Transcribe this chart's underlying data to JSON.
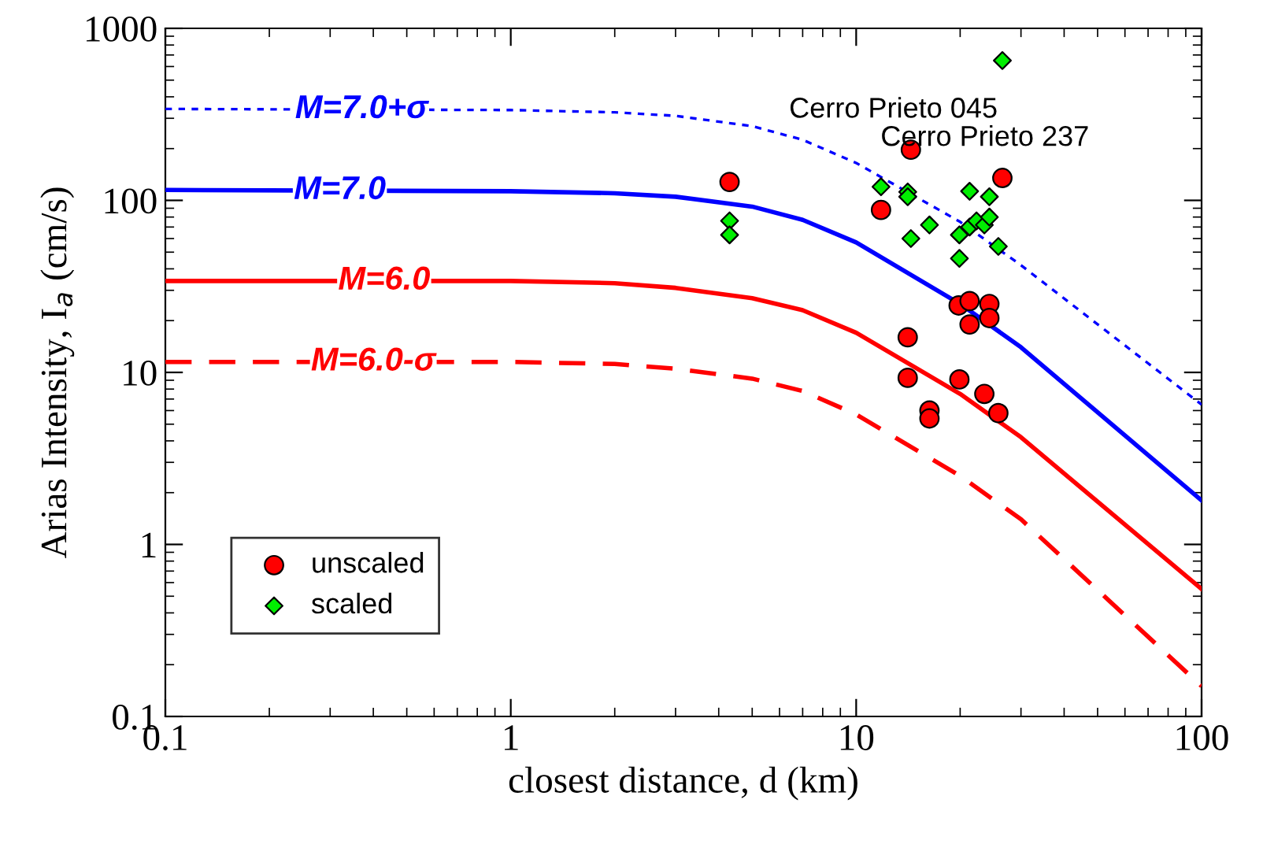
{
  "chart_data": {
    "type": "line",
    "xlabel": "closest distance, d (km)",
    "ylabel": "Arias Intensity, I$_{a}$ (cm/s)",
    "log": "xy",
    "xlim": [
      0.1,
      100
    ],
    "ylim": [
      0.1,
      1000
    ],
    "xticks": [
      0.1,
      1,
      10,
      100
    ],
    "yticks": [
      0.1,
      1,
      10,
      100,
      1000
    ],
    "grid": false,
    "legend": "bottom left",
    "series": [
      {
        "name": "M=7.0+σ",
        "color": "#0000ff",
        "line_style": "dotted",
        "marker": "none",
        "x": [
          0.1,
          1,
          2,
          3,
          5,
          7,
          10,
          20,
          30,
          100
        ],
        "values": [
          340,
          335,
          325,
          310,
          270,
          225,
          165,
          75,
          42,
          6.5
        ]
      },
      {
        "name": "M=7.0",
        "color": "#0000ff",
        "line_style": "solid",
        "marker": "none",
        "x": [
          0.1,
          1,
          2,
          3,
          5,
          7,
          10,
          20,
          30,
          100
        ],
        "values": [
          115,
          113,
          110,
          105,
          92,
          77,
          57,
          25,
          14,
          1.8
        ]
      },
      {
        "name": "M=6.0",
        "color": "#ff0000",
        "line_style": "solid",
        "marker": "none",
        "x": [
          0.1,
          1,
          2,
          3,
          5,
          7,
          10,
          20,
          30,
          100
        ],
        "values": [
          34,
          34,
          33,
          31,
          27,
          23,
          17,
          7.5,
          4.2,
          0.55
        ]
      },
      {
        "name": "M=6.0-σ",
        "color": "#ff0000",
        "line_style": "dashed",
        "marker": "none",
        "x": [
          0.1,
          1,
          2,
          3,
          5,
          7,
          10,
          20,
          30,
          100
        ],
        "values": [
          11.5,
          11.5,
          11.2,
          10.5,
          9.2,
          7.8,
          5.7,
          2.5,
          1.4,
          0.15
        ]
      },
      {
        "name": "unscaled",
        "type": "scatter",
        "color": "#ff0000",
        "marker": "circle",
        "x": [
          4.3,
          14.4,
          26.5,
          11.8,
          19.8,
          21.3,
          24.3,
          21.3,
          24.3,
          14.1,
          14.1,
          19.9,
          23.5,
          25.8,
          16.3,
          16.3
        ],
        "values": [
          128,
          197,
          135,
          88,
          24.5,
          26,
          25,
          19,
          20.7,
          16,
          9.3,
          9.1,
          7.5,
          5.8,
          6.0,
          5.4
        ]
      },
      {
        "name": "scaled",
        "type": "scatter",
        "color": "#00ee00",
        "marker": "diamond",
        "x": [
          4.3,
          4.3,
          26.5,
          11.8,
          14.1,
          14.1,
          14.4,
          16.3,
          21.3,
          24.3,
          19.9,
          19.9,
          21.3,
          22.3,
          23.5,
          24.3,
          25.8
        ],
        "values": [
          76,
          63,
          650,
          120,
          112,
          105,
          60,
          72,
          113,
          105,
          63,
          46,
          70,
          76,
          72,
          80,
          54
        ]
      }
    ],
    "annotations": [
      {
        "text": "Cerro Prieto 045",
        "x": 14.4,
        "y": 197
      },
      {
        "text": "Cerro Prieto 237",
        "x": 26.5,
        "y": 135
      }
    ]
  }
}
